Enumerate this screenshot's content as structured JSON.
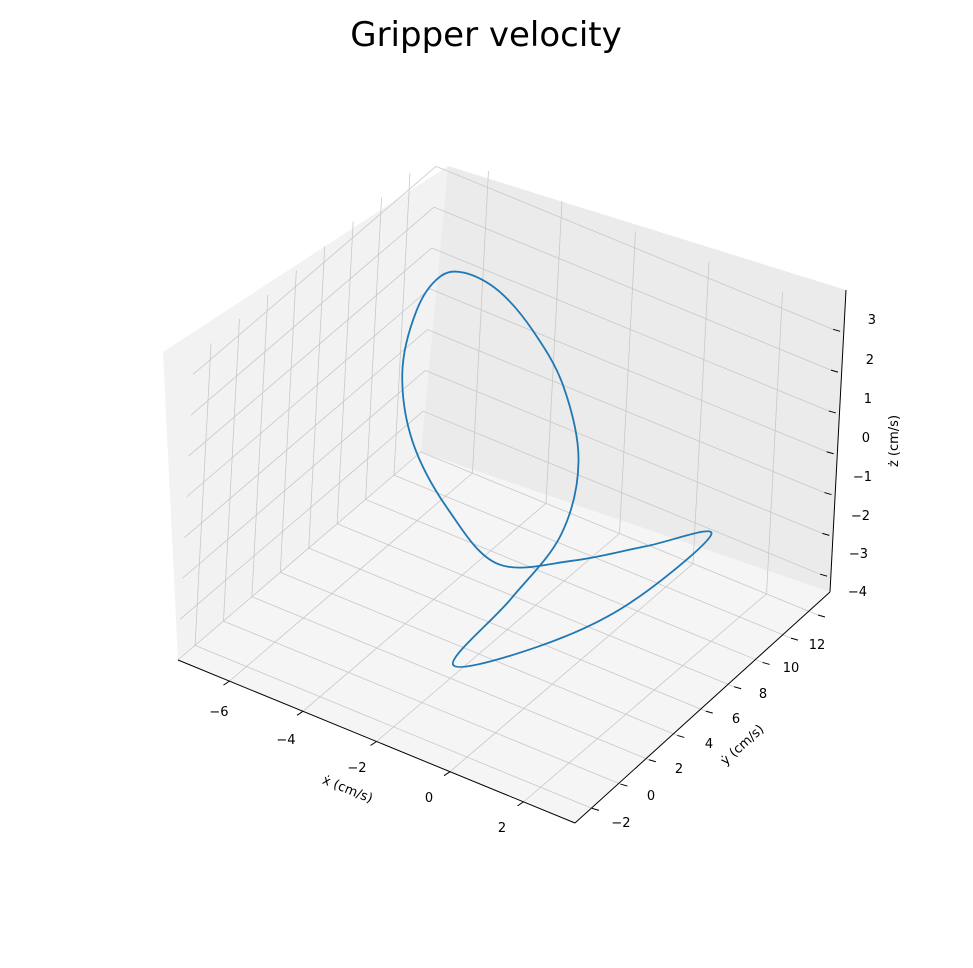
{
  "chart_data": {
    "type": "line",
    "projection": "3d",
    "title": "Gripper velocity",
    "xlabel": "ẋ (cm/s)",
    "ylabel": "ẏ (cm/s)",
    "zlabel": "ż (cm/s)",
    "xticks": [
      "−6",
      "−4",
      "−2",
      "0",
      "2"
    ],
    "yticks": [
      "−2",
      "0",
      "2",
      "4",
      "6",
      "8",
      "10",
      "12"
    ],
    "zticks": [
      "−4",
      "−3",
      "−2",
      "−1",
      "0",
      "1",
      "2",
      "3"
    ],
    "xlim": [
      -7.4,
      3.4
    ],
    "ylim": [
      -3.2,
      13.9
    ],
    "zlim": [
      -4.0,
      3.4
    ],
    "grid": true,
    "line_color": "#1f77b4",
    "series": [
      {
        "x": [
          -1.9,
          -3.8,
          -5.5,
          -6.6,
          -7.0,
          -6.8,
          -6.1,
          -4.9,
          -3.5,
          -2.0,
          -0.7,
          -0.2,
          -0.5,
          -0.9,
          0.6,
          2.1,
          3.3,
          1.6,
          -0.1,
          -1.9
        ],
        "y": [
          4.8,
          6.2,
          8.0,
          10.0,
          11.9,
          12.9,
          12.8,
          12.1,
          10.9,
          9.2,
          7.0,
          4.6,
          2.0,
          -0.9,
          1.1,
          3.4,
          6.0,
          5.9,
          5.3,
          4.8
        ],
        "z": [
          -2.0,
          -1.8,
          -1.3,
          -0.6,
          0.2,
          0.8,
          1.2,
          1.4,
          1.3,
          1.0,
          0.3,
          -0.6,
          -1.5,
          -2.4,
          -2.0,
          -1.1,
          0.3,
          -0.6,
          -1.4,
          -2.0
        ]
      }
    ]
  }
}
